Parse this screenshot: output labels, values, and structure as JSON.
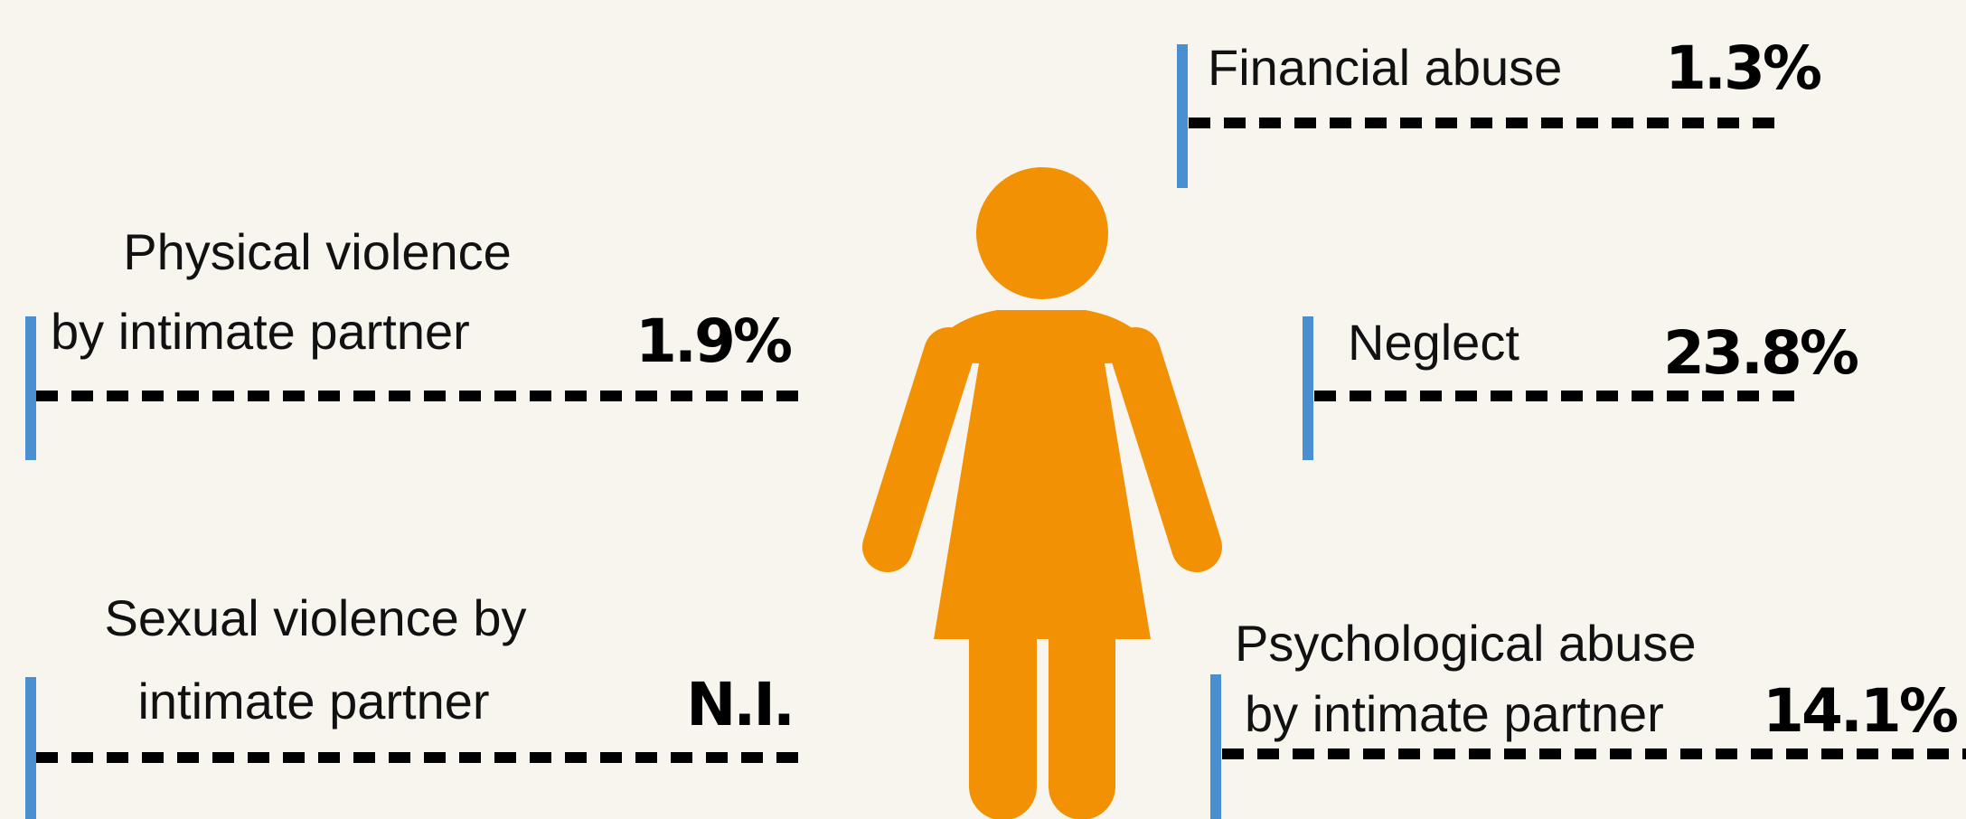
{
  "items": [
    {
      "label": [
        "Financial abuse"
      ],
      "value": "1.3%"
    },
    {
      "label": [
        "Neglect"
      ],
      "value": "23.8%"
    },
    {
      "label": [
        "Psychological abuse",
        "by intimate partner"
      ],
      "value": "14.1%"
    },
    {
      "label": [
        "Physical violence",
        "by intimate partner"
      ],
      "value": "1.9%"
    },
    {
      "label": [
        "Sexual violence by",
        "intimate partner"
      ],
      "value": "N.I."
    }
  ]
}
